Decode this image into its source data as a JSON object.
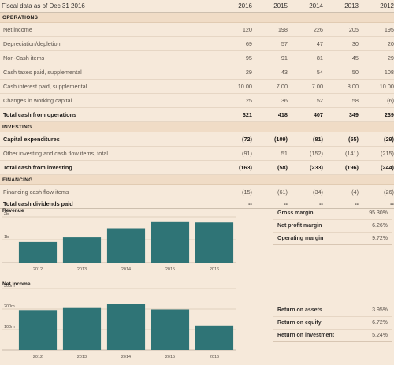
{
  "table": {
    "title": "Fiscal data as of Dec 31 2016",
    "years": [
      "2016",
      "2015",
      "2014",
      "2013",
      "2012"
    ],
    "sections": [
      {
        "name": "OPERATIONS",
        "rows": [
          {
            "label": "Net income",
            "values": [
              "120",
              "198",
              "226",
              "205",
              "195"
            ],
            "total": false
          },
          {
            "label": "Depreciation/depletion",
            "values": [
              "69",
              "57",
              "47",
              "30",
              "20"
            ],
            "total": false
          },
          {
            "label": "Non-Cash items",
            "values": [
              "95",
              "91",
              "81",
              "45",
              "29"
            ],
            "total": false
          },
          {
            "label": "Cash taxes paid, supplemental",
            "values": [
              "29",
              "43",
              "54",
              "50",
              "108"
            ],
            "total": false
          },
          {
            "label": "Cash interest paid, supplemental",
            "values": [
              "10.00",
              "7.00",
              "7.00",
              "8.00",
              "10.00"
            ],
            "total": false
          },
          {
            "label": "Changes in working capital",
            "values": [
              "25",
              "36",
              "52",
              "58",
              "(6)"
            ],
            "total": false
          },
          {
            "label": "Total cash from operations",
            "values": [
              "321",
              "418",
              "407",
              "349",
              "239"
            ],
            "total": true
          }
        ]
      },
      {
        "name": "INVESTING",
        "rows": [
          {
            "label": "Capital expenditures",
            "values": [
              "(72)",
              "(109)",
              "(81)",
              "(55)",
              "(29)"
            ],
            "total": true
          },
          {
            "label": "Other investing and cash flow items, total",
            "values": [
              "(91)",
              "51",
              "(152)",
              "(141)",
              "(215)"
            ],
            "total": false
          },
          {
            "label": "Total cash from investing",
            "values": [
              "(163)",
              "(58)",
              "(233)",
              "(196)",
              "(244)"
            ],
            "total": true
          }
        ]
      },
      {
        "name": "FINANCING",
        "rows": [
          {
            "label": "Financing cash flow items",
            "values": [
              "(15)",
              "(61)",
              "(34)",
              "(4)",
              "(26)"
            ],
            "total": false
          }
        ]
      }
    ],
    "dividends": {
      "label": "Total cash dividends paid",
      "values": [
        "--",
        "--",
        "--",
        "--",
        "--"
      ]
    }
  },
  "chart_data": [
    {
      "type": "bar",
      "title": "Revenue",
      "categories": [
        "2012",
        "2013",
        "2014",
        "2015",
        "2016"
      ],
      "values": [
        0.9,
        1.1,
        1.5,
        1.8,
        1.75
      ],
      "ylim": [
        0,
        2
      ],
      "yticks": [
        {
          "v": 1,
          "label": "1b"
        },
        {
          "v": 2,
          "label": "2b"
        }
      ],
      "bar_color": "#2f7476",
      "grid": true
    },
    {
      "type": "bar",
      "title": "Net Income",
      "categories": [
        "2012",
        "2013",
        "2014",
        "2015",
        "2016"
      ],
      "values": [
        195,
        205,
        226,
        198,
        120
      ],
      "ylim": [
        0,
        300
      ],
      "yticks": [
        {
          "v": 100,
          "label": "100m"
        },
        {
          "v": 200,
          "label": "200m"
        },
        {
          "v": 300,
          "label": "300m"
        }
      ],
      "bar_color": "#2f7476",
      "grid": true
    }
  ],
  "ratios_top": [
    {
      "label": "Gross margin",
      "value": "95.30%"
    },
    {
      "label": "Net profit margin",
      "value": "6.26%"
    },
    {
      "label": "Operating margin",
      "value": "9.72%"
    }
  ],
  "ratios_bottom": [
    {
      "label": "Return on assets",
      "value": "3.95%"
    },
    {
      "label": "Return on equity",
      "value": "6.72%"
    },
    {
      "label": "Return on investment",
      "value": "5.24%"
    }
  ]
}
